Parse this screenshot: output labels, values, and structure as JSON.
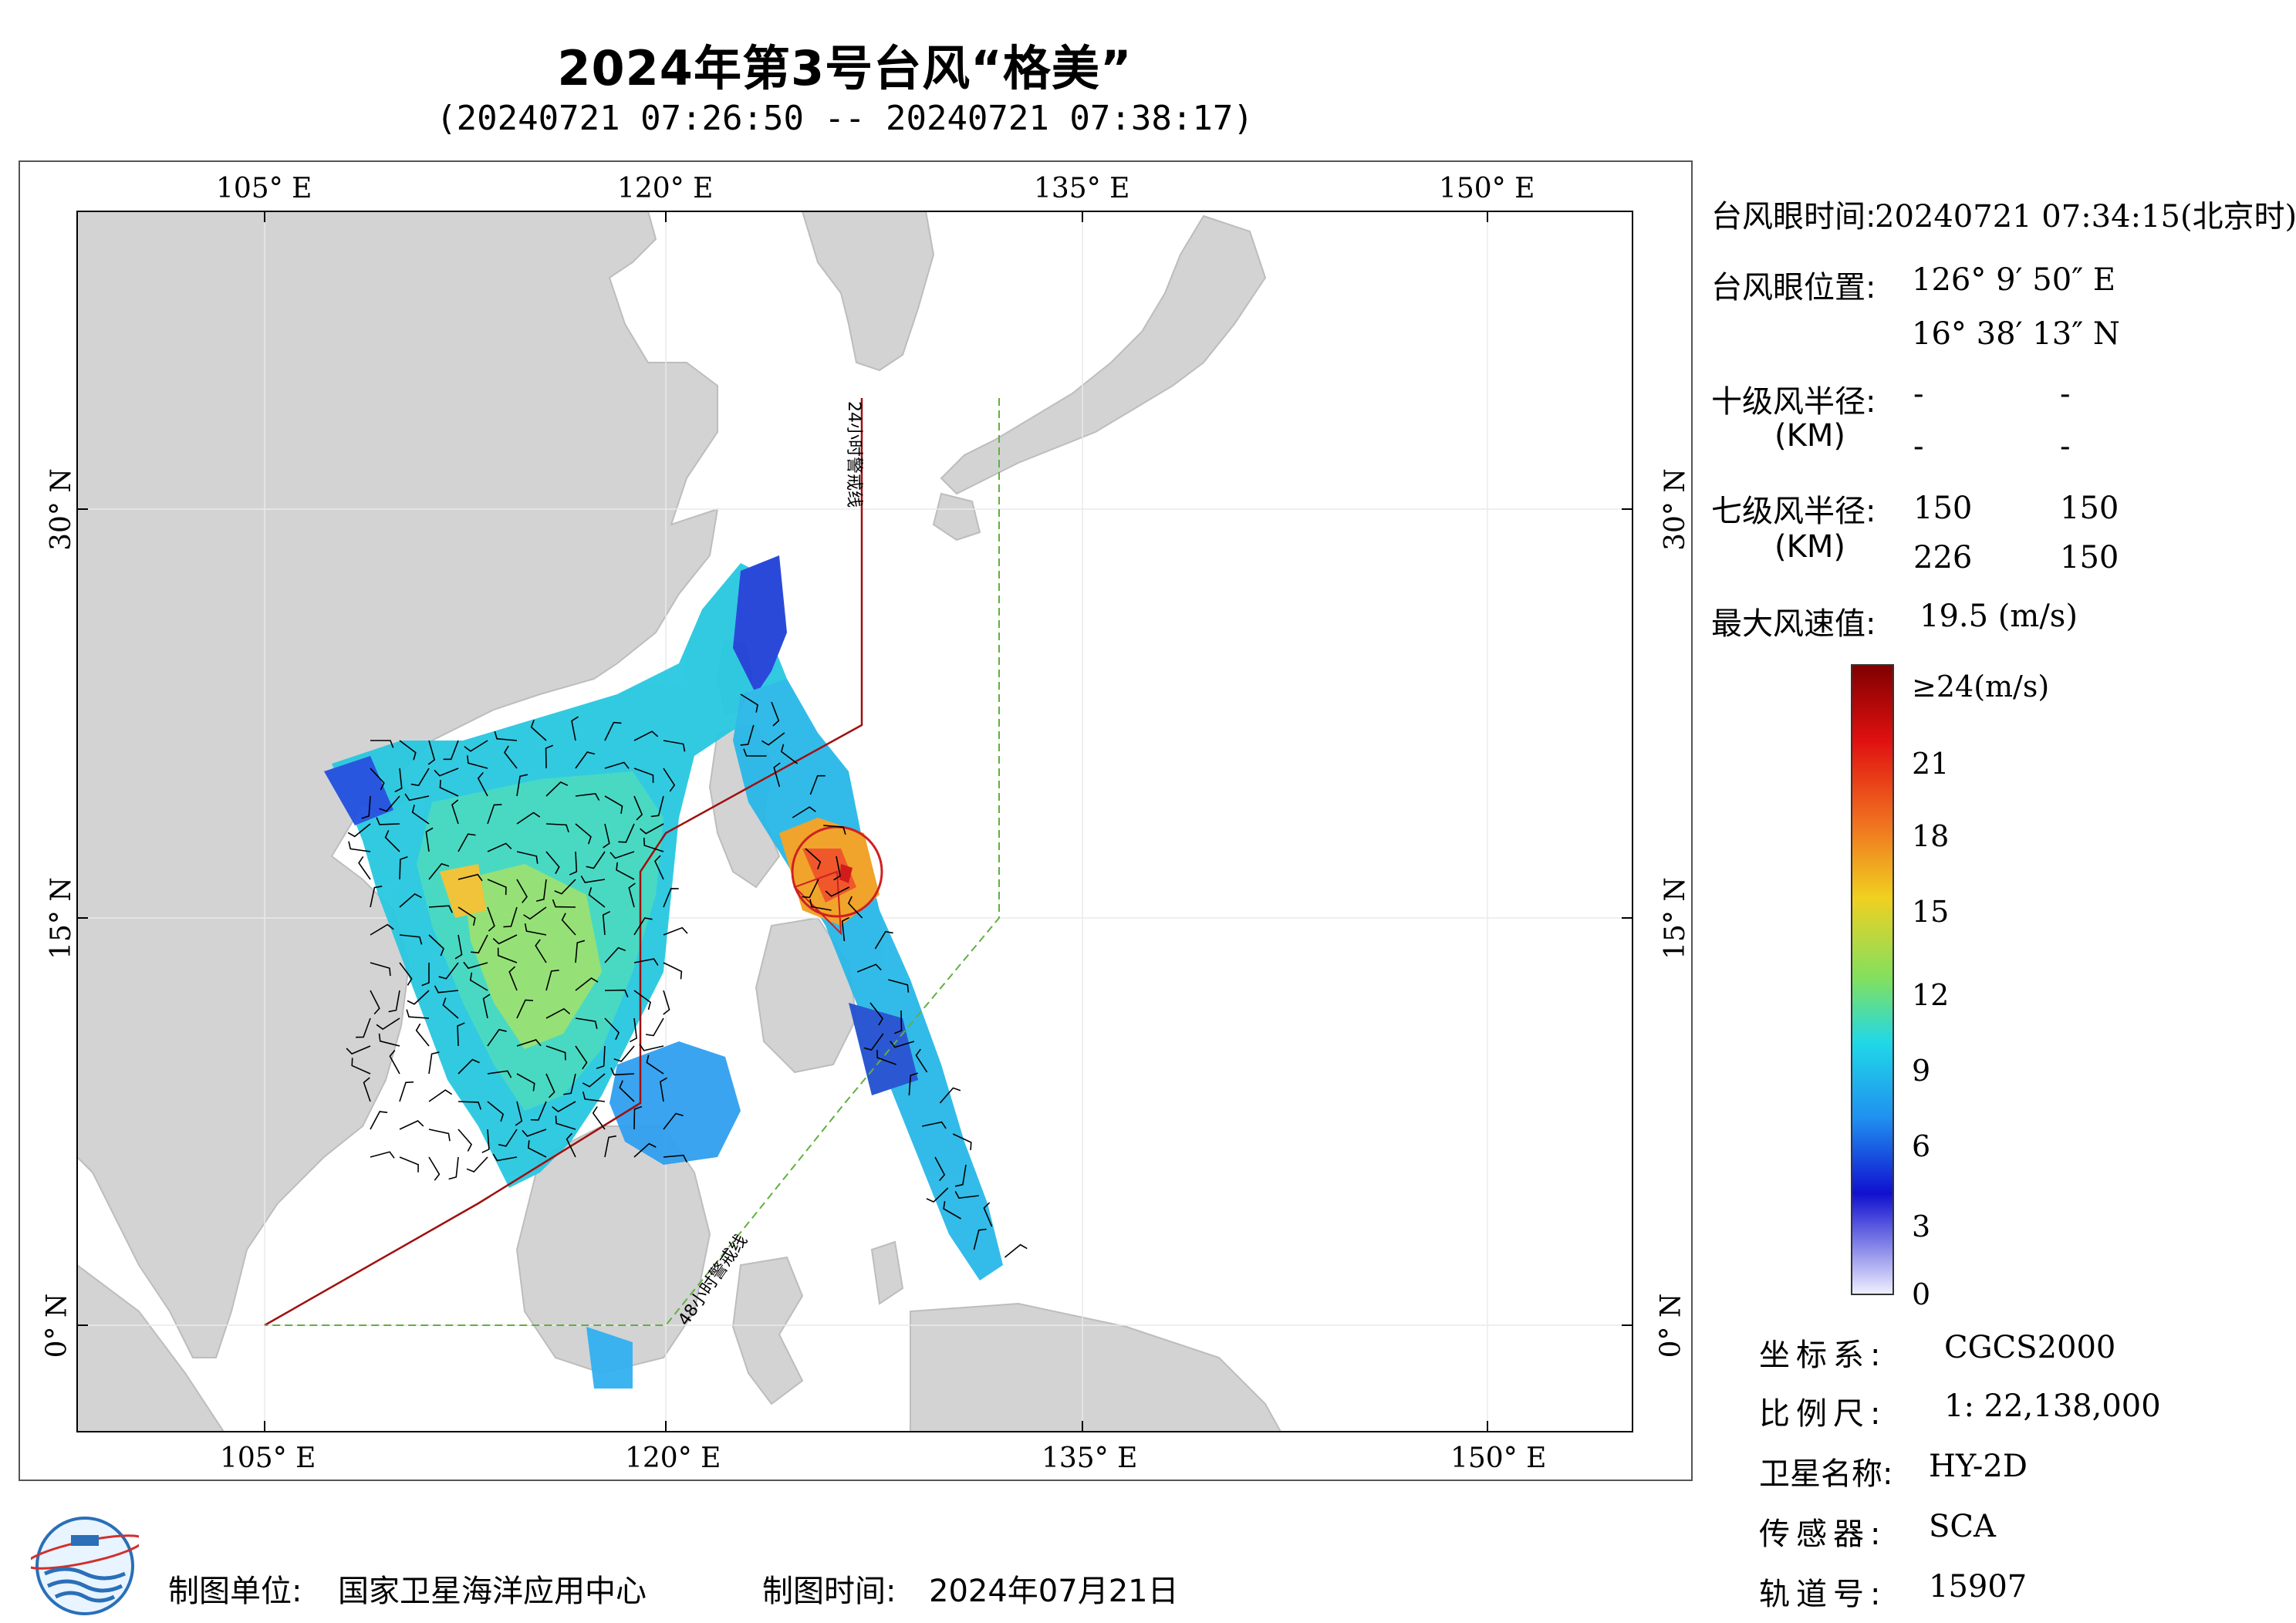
{
  "header": {
    "title": "2024年第3号台风“格美”",
    "subtitle": "(20240721 07:26:50 -- 20240721 07:38:17)"
  },
  "map": {
    "lon_ticks": [
      "105° E",
      "120° E",
      "135° E",
      "150° E"
    ],
    "lat_ticks": [
      "30° N",
      "15° N",
      "0° N"
    ],
    "warning_line_24h": "24小时警戒线",
    "warning_line_48h": "48小时警戒线",
    "colors": {
      "land": "#d3d3d3",
      "sea": "#ffffff",
      "line_24h": "#a01010",
      "line_48h": "#60b040",
      "typhoon_circle": "#d02020"
    },
    "typhoon_eye": {
      "lon": 126.164,
      "lat": 16.637
    }
  },
  "info": {
    "eye_time_label": "台风眼时间:",
    "eye_time_value": "20240721 07:34:15(北京时)",
    "eye_pos_label": "台风眼位置:",
    "eye_lon": "126° 9′ 50″ E",
    "eye_lat": "16° 38′ 13″ N",
    "r10_label": "十级风半径:",
    "r10_unit": "(KM)",
    "r10_values": [
      "-",
      "-",
      "-",
      "-"
    ],
    "r7_label": "七级风半径:",
    "r7_unit": "(KM)",
    "r7_values": [
      "150",
      "150",
      "226",
      "150"
    ],
    "max_wind_label": "最大风速值:",
    "max_wind_value": "19.5  (m/s)"
  },
  "colorbar": {
    "ticks": [
      "≥24(m/s)",
      "21",
      "18",
      "15",
      "12",
      "9",
      "6",
      "3",
      "0"
    ]
  },
  "meta": {
    "crs_label": "坐标系:",
    "crs_value": "CGCS2000",
    "scale_label": "比例尺:",
    "scale_value": "1: 22,138,000",
    "satellite_label": "卫星名称:",
    "satellite_value": "HY-2D",
    "sensor_label": "传感器:",
    "sensor_value": "SCA",
    "orbit_label": "轨道号:",
    "orbit_value": "15907"
  },
  "footer": {
    "producer_label": "制图单位:",
    "producer_value": "国家卫星海洋应用中心",
    "date_label": "制图时间:",
    "date_value": "2024年07月21日"
  }
}
